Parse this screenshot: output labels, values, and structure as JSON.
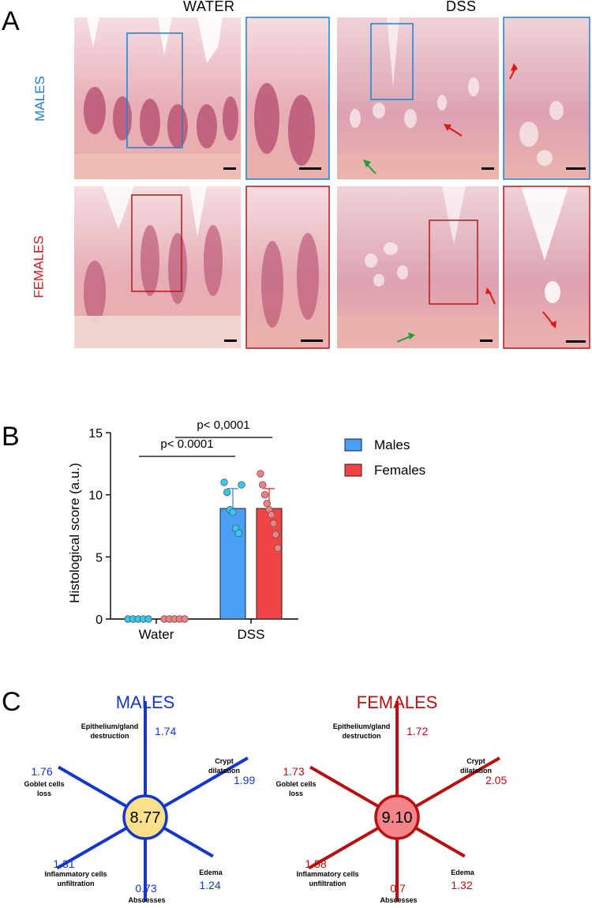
{
  "panel_a": {
    "letter": "A",
    "columns": [
      "WATER",
      "DSS"
    ],
    "rows": [
      "MALES",
      "FEMALES"
    ],
    "colors": {
      "males": "#1f7fd1",
      "females": "#d4181f",
      "green_arrow": "#1fa03c",
      "red_arrow": "#e01515"
    }
  },
  "panel_b": {
    "letter": "B",
    "p_water_dss": "p< 0.0001",
    "p_dss": "p< 0,0001",
    "chart_data": {
      "type": "bar",
      "categories": [
        "Water",
        "DSS"
      ],
      "ylabel": "Histological score (a.u.)",
      "ylim": [
        0,
        15
      ],
      "yticks": [
        0,
        5,
        10,
        15
      ],
      "legend_position": "right",
      "series": [
        {
          "name": "Males",
          "color": "#4a9ef5",
          "point_color": "#35c8f0",
          "values": [
            0,
            8.9
          ],
          "errors": [
            0,
            1.6
          ],
          "points": [
            [
              0,
              0,
              0,
              0,
              0
            ],
            [
              11.0,
              10.2,
              8.8,
              8.6,
              7.3,
              6.9,
              10.8
            ]
          ]
        },
        {
          "name": "Females",
          "color": "#f14444",
          "point_color": "#f28080",
          "values": [
            0,
            8.9
          ],
          "errors": [
            0,
            1.6
          ],
          "points": [
            [
              0,
              0,
              0,
              0,
              0
            ],
            [
              11.7,
              10.8,
              10.0,
              9.3,
              8.8,
              8.4,
              7.7,
              6.8,
              5.7
            ]
          ]
        }
      ]
    }
  },
  "panel_c": {
    "letter": "C",
    "males": {
      "title": "MALES",
      "total": "8.77",
      "color": "#1437c8",
      "fill": "#fde08a",
      "items": [
        {
          "label": "Epithelium/gland destruction",
          "value": "1.74"
        },
        {
          "label": "Crypt dilatation",
          "value": "1.99"
        },
        {
          "label": "Edema",
          "value": "1.24"
        },
        {
          "label": "Abscesses",
          "value": "0.73"
        },
        {
          "label": "Inflammatory cells unfiltration",
          "value": "1.31"
        },
        {
          "label": "Goblet cells loss",
          "value": "1.76"
        }
      ]
    },
    "females": {
      "title": "FEMALES",
      "total": "9.10",
      "color": "#b80f10",
      "fill": "#f4858a",
      "items": [
        {
          "label": "Epithelium/gland destruction",
          "value": "1.72"
        },
        {
          "label": "Crypt dilatation",
          "value": "2.05"
        },
        {
          "label": "Edema",
          "value": "1.32"
        },
        {
          "label": "Abscesses",
          "value": "0.7"
        },
        {
          "label": "Inflammatory cells unfiltration",
          "value": "1.58"
        },
        {
          "label": "Goblet cells loss",
          "value": "1.73"
        }
      ]
    }
  }
}
